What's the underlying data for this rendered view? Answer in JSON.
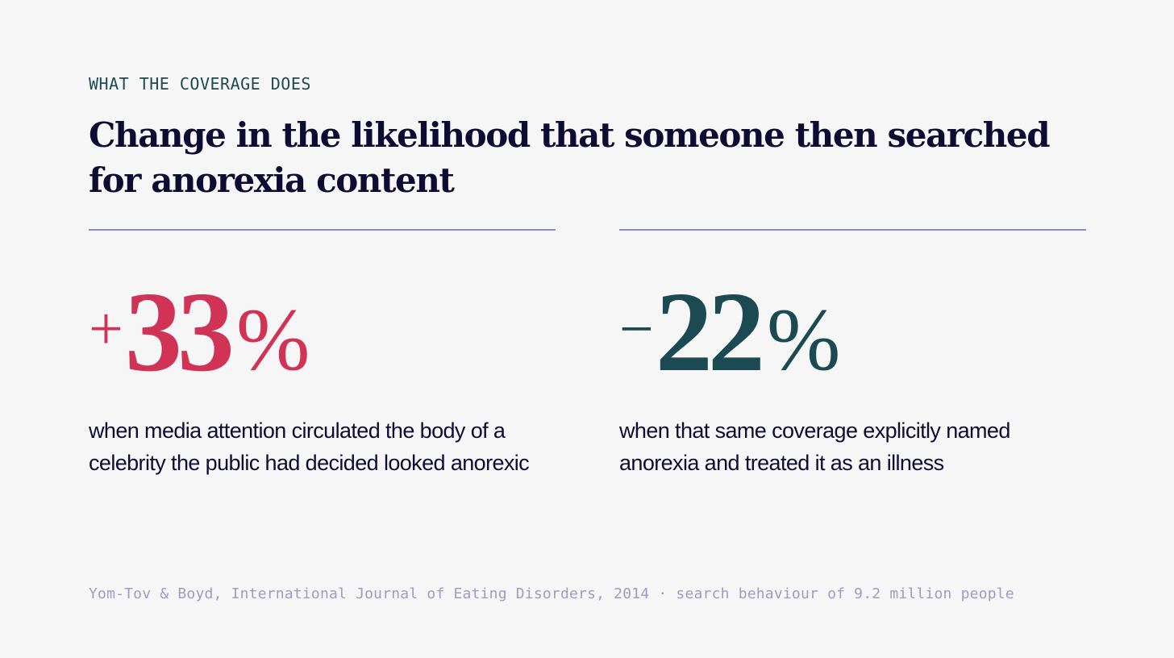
{
  "eyebrow": "WHAT THE COVERAGE DOES",
  "headline": "Change in the likelihood that someone then searched for anorexia content",
  "stats": [
    {
      "sign": "+",
      "number": "33",
      "unit": "%",
      "value": 33,
      "color": "#d13356",
      "description": "when media attention circulated the body of a celebrity the public had decided looked anorexic"
    },
    {
      "sign": "−",
      "number": "22",
      "unit": "%",
      "value": -22,
      "color": "#1c4a52",
      "description": "when that same coverage explicitly named anorexia and treated it as an illness"
    }
  ],
  "source": "Yom-Tov & Boyd, International Journal of Eating Disorders, 2014 · search behaviour of 9.2 million people",
  "colors": {
    "background": "#f6f6f6",
    "text": "#0d0c33",
    "rule": "#8c8cb8",
    "muted": "#9c9cc4"
  }
}
